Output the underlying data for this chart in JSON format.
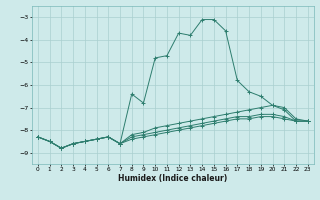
{
  "xlabel": "Humidex (Indice chaleur)",
  "bg_color": "#ceeaea",
  "grid_color": "#aacfcf",
  "line_color": "#2d7d6e",
  "xlim": [
    -0.5,
    23.5
  ],
  "ylim": [
    -9.5,
    -2.5
  ],
  "yticks": [
    -9,
    -8,
    -7,
    -6,
    -5,
    -4,
    -3
  ],
  "xticks": [
    0,
    1,
    2,
    3,
    4,
    5,
    6,
    7,
    8,
    9,
    10,
    11,
    12,
    13,
    14,
    15,
    16,
    17,
    18,
    19,
    20,
    21,
    22,
    23
  ],
  "series": [
    {
      "x": [
        0,
        1,
        2,
        3,
        4,
        5,
        6,
        7,
        8,
        9,
        10,
        11,
        12,
        13,
        14,
        15,
        16,
        17,
        18,
        19,
        20,
        21,
        22,
        23
      ],
      "y": [
        -8.3,
        -8.5,
        -8.8,
        -8.6,
        -8.5,
        -8.4,
        -8.3,
        -8.6,
        -6.4,
        -6.8,
        -4.8,
        -4.7,
        -3.7,
        -3.8,
        -3.1,
        -3.1,
        -3.6,
        -5.8,
        -6.3,
        -6.5,
        -6.9,
        -7.1,
        -7.6,
        -7.6
      ]
    },
    {
      "x": [
        0,
        1,
        2,
        3,
        4,
        5,
        6,
        7,
        8,
        9,
        10,
        11,
        12,
        13,
        14,
        15,
        16,
        17,
        18,
        19,
        20,
        21,
        22,
        23
      ],
      "y": [
        -8.3,
        -8.5,
        -8.8,
        -8.6,
        -8.5,
        -8.4,
        -8.3,
        -8.6,
        -8.2,
        -8.1,
        -7.9,
        -7.8,
        -7.7,
        -7.6,
        -7.5,
        -7.4,
        -7.3,
        -7.2,
        -7.1,
        -7.0,
        -6.9,
        -7.0,
        -7.5,
        -7.6
      ]
    },
    {
      "x": [
        0,
        1,
        2,
        3,
        4,
        5,
        6,
        7,
        8,
        9,
        10,
        11,
        12,
        13,
        14,
        15,
        16,
        17,
        18,
        19,
        20,
        21,
        22,
        23
      ],
      "y": [
        -8.3,
        -8.5,
        -8.8,
        -8.6,
        -8.5,
        -8.4,
        -8.3,
        -8.6,
        -8.3,
        -8.2,
        -8.1,
        -8.0,
        -7.9,
        -7.8,
        -7.7,
        -7.6,
        -7.5,
        -7.4,
        -7.4,
        -7.3,
        -7.3,
        -7.4,
        -7.6,
        -7.6
      ]
    },
    {
      "x": [
        0,
        1,
        2,
        3,
        4,
        5,
        6,
        7,
        8,
        9,
        10,
        11,
        12,
        13,
        14,
        15,
        16,
        17,
        18,
        19,
        20,
        21,
        22,
        23
      ],
      "y": [
        -8.3,
        -8.5,
        -8.8,
        -8.6,
        -8.5,
        -8.4,
        -8.3,
        -8.6,
        -8.4,
        -8.3,
        -8.2,
        -8.1,
        -8.0,
        -7.9,
        -7.8,
        -7.7,
        -7.6,
        -7.5,
        -7.5,
        -7.4,
        -7.4,
        -7.5,
        -7.6,
        -7.6
      ]
    }
  ]
}
